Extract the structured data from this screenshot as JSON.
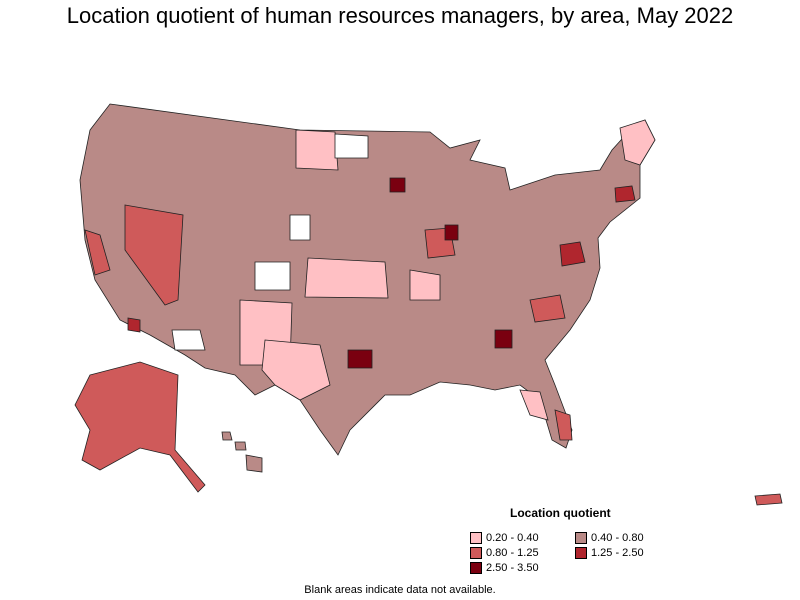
{
  "title": "Location quotient of human resources managers, by area, May 2022",
  "legend": {
    "title": "Location quotient",
    "items": [
      {
        "label": "0.20 - 0.40",
        "color": "#ffc0c4"
      },
      {
        "label": "0.40 - 0.80",
        "color": "#b98a87"
      },
      {
        "label": "0.80 - 1.25",
        "color": "#cf5a5a"
      },
      {
        "label": "1.25 - 2.50",
        "color": "#b0262e"
      },
      {
        "label": "2.50 - 3.50",
        "color": "#7a0010"
      }
    ]
  },
  "footnote": "Blank areas indicate data not available.",
  "colors": {
    "background": "#ffffff",
    "border": "#222222",
    "no_data": "#ffffff"
  }
}
